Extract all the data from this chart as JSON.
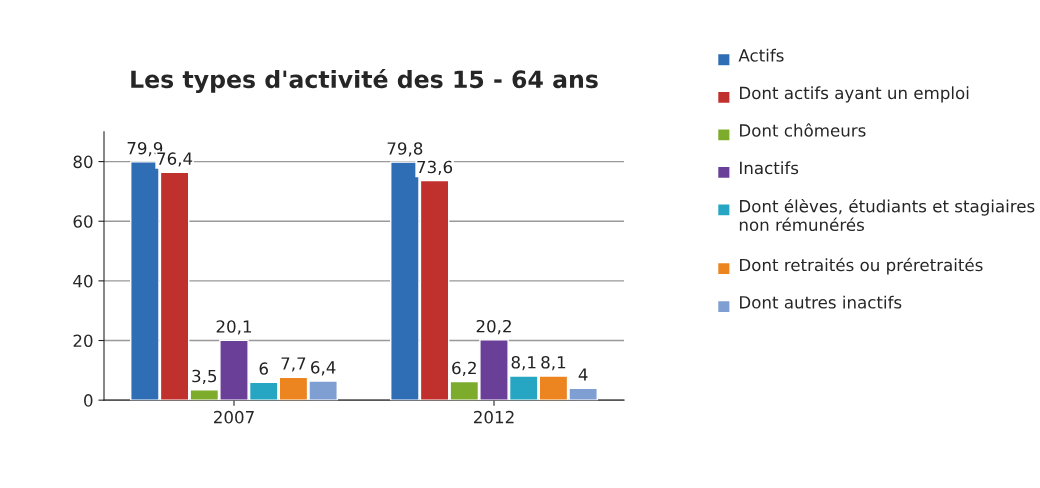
{
  "chart_data": {
    "type": "bar",
    "title": "Les types d'activité des 15 - 64 ans",
    "categories": [
      "2007",
      "2012"
    ],
    "series": [
      {
        "name": "Actifs",
        "color": "#2f6db5",
        "values": [
          79.9,
          79.8
        ],
        "value_labels": [
          "79,9",
          "79,8"
        ]
      },
      {
        "name": "Dont actifs ayant un emploi",
        "color": "#c0302c",
        "values": [
          76.4,
          73.6
        ],
        "value_labels": [
          "76,4",
          "73,6"
        ]
      },
      {
        "name": "Dont chômeurs",
        "color": "#7dab2c",
        "values": [
          3.5,
          6.2
        ],
        "value_labels": [
          "3,5",
          "6,2"
        ]
      },
      {
        "name": "Inactifs",
        "color": "#6a3f98",
        "values": [
          20.1,
          20.2
        ],
        "value_labels": [
          "20,1",
          "20,2"
        ]
      },
      {
        "name": "Dont élèves, étudiants et stagiaires non rémunérés",
        "color": "#26a6c2",
        "values": [
          6,
          8.1
        ],
        "value_labels": [
          "6",
          "8,1"
        ]
      },
      {
        "name": "Dont retraités ou préretraités",
        "color": "#ec8420",
        "values": [
          7.7,
          8.1
        ],
        "value_labels": [
          "7,7",
          "8,1"
        ]
      },
      {
        "name": "Dont autres inactifs",
        "color": "#7f9fd3",
        "values": [
          6.4,
          4
        ],
        "value_labels": [
          "6,4",
          "4"
        ]
      }
    ],
    "ylim": [
      0,
      90
    ],
    "yticks": [
      0,
      20,
      40,
      60,
      80
    ],
    "grid": "y",
    "legend": "right"
  }
}
